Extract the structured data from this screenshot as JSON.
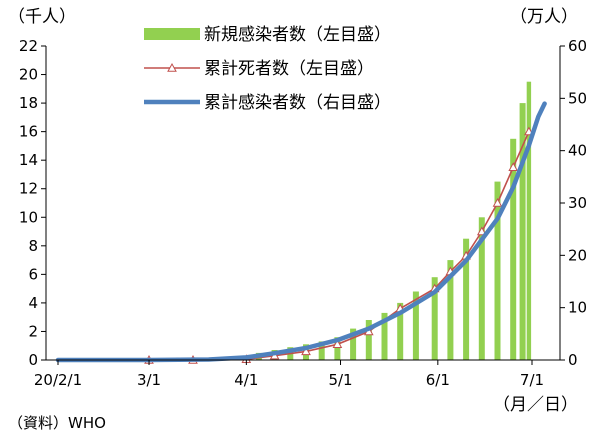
{
  "chart_data": {
    "type": "bar",
    "left_axis": {
      "label": "（千人）",
      "range": [
        0,
        22
      ],
      "ticks": [
        "0",
        "2",
        "4",
        "6",
        "8",
        "10",
        "12",
        "14",
        "16",
        "18",
        "20",
        "22"
      ]
    },
    "right_axis": {
      "label": "（万人）",
      "range": [
        0,
        60
      ],
      "ticks": [
        "0",
        "10",
        "20",
        "30",
        "40",
        "50",
        "60"
      ]
    },
    "x_axis": {
      "range": [
        "2020-02-01",
        "2020-07-01"
      ],
      "ticks": [
        {
          "date": "2020-02-01",
          "label": "20/2/1"
        },
        {
          "date": "2020-03-01",
          "label": "3/1"
        },
        {
          "date": "2020-04-01",
          "label": "4/1"
        },
        {
          "date": "2020-05-01",
          "label": "5/1"
        },
        {
          "date": "2020-06-01",
          "label": "6/1"
        },
        {
          "date": "2020-07-01",
          "label": "7/1"
        }
      ],
      "unit_label": "（月／日）"
    },
    "legend_position": "top-center",
    "grid": false,
    "series": [
      {
        "name": "新規感染者数（左目盛",
        "legend_suffix": "）",
        "type": "bar",
        "axis": "left",
        "unit": "千人",
        "color": "#92d050",
        "points": [
          [
            "2020-02-01",
            0
          ],
          [
            "2020-02-15",
            0
          ],
          [
            "2020-03-01",
            0
          ],
          [
            "2020-03-10",
            0.02
          ],
          [
            "2020-03-20",
            0.05
          ],
          [
            "2020-03-25",
            0.1
          ],
          [
            "2020-04-01",
            0.3
          ],
          [
            "2020-04-05",
            0.5
          ],
          [
            "2020-04-10",
            0.7
          ],
          [
            "2020-04-15",
            0.9
          ],
          [
            "2020-04-20",
            1.1
          ],
          [
            "2020-04-25",
            1.3
          ],
          [
            "2020-04-30",
            1.6
          ],
          [
            "2020-05-05",
            2.2
          ],
          [
            "2020-05-10",
            2.8
          ],
          [
            "2020-05-15",
            3.3
          ],
          [
            "2020-05-20",
            4.0
          ],
          [
            "2020-05-25",
            4.8
          ],
          [
            "2020-05-31",
            5.8
          ],
          [
            "2020-06-05",
            7.0
          ],
          [
            "2020-06-10",
            8.5
          ],
          [
            "2020-06-15",
            10.0
          ],
          [
            "2020-06-20",
            12.5
          ],
          [
            "2020-06-25",
            15.5
          ],
          [
            "2020-06-28",
            18.0
          ],
          [
            "2020-06-30",
            19.5
          ]
        ]
      },
      {
        "name": "累計死者数（左目盛",
        "legend_suffix": "）",
        "type": "line",
        "marker": "triangle-open",
        "axis": "left",
        "unit": "千人",
        "color": "#c0504d",
        "points": [
          [
            "2020-03-01",
            0
          ],
          [
            "2020-03-15",
            0
          ],
          [
            "2020-04-01",
            0.05
          ],
          [
            "2020-04-10",
            0.3
          ],
          [
            "2020-04-20",
            0.6
          ],
          [
            "2020-04-30",
            1.1
          ],
          [
            "2020-05-10",
            2.0
          ],
          [
            "2020-05-20",
            3.6
          ],
          [
            "2020-05-31",
            5.0
          ],
          [
            "2020-06-05",
            6.2
          ],
          [
            "2020-06-10",
            7.3
          ],
          [
            "2020-06-15",
            9.0
          ],
          [
            "2020-06-20",
            11.0
          ],
          [
            "2020-06-25",
            13.5
          ],
          [
            "2020-06-30",
            16.0
          ]
        ]
      },
      {
        "name": "累計感染者数（右目盛",
        "legend_suffix": "）",
        "type": "line",
        "axis": "right",
        "unit": "万人",
        "color": "#4f81bd",
        "points": [
          [
            "2020-02-01",
            0
          ],
          [
            "2020-03-01",
            0
          ],
          [
            "2020-03-20",
            0.1
          ],
          [
            "2020-04-01",
            0.5
          ],
          [
            "2020-04-10",
            1.3
          ],
          [
            "2020-04-20",
            2.3
          ],
          [
            "2020-04-30",
            3.8
          ],
          [
            "2020-05-10",
            6.0
          ],
          [
            "2020-05-20",
            9.0
          ],
          [
            "2020-05-31",
            13.0
          ],
          [
            "2020-06-10",
            19.0
          ],
          [
            "2020-06-20",
            27.0
          ],
          [
            "2020-06-25",
            33.0
          ],
          [
            "2020-06-30",
            41.0
          ],
          [
            "2020-07-03",
            46.5
          ],
          [
            "2020-07-05",
            49.0
          ]
        ]
      }
    ]
  },
  "source_note": "（資料）WHO"
}
